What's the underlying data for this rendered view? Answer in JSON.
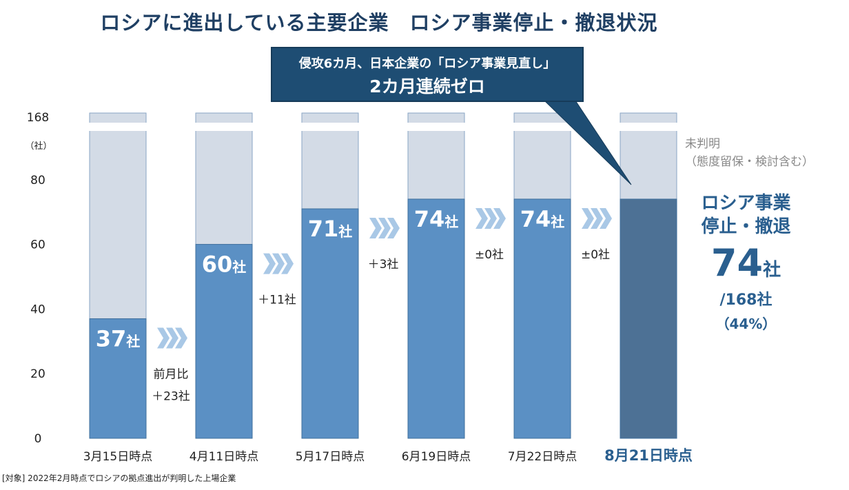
{
  "title": "ロシアに進出している主要企業　ロシア事業停止・撤退状況",
  "callout": {
    "line1": "侵攻6カ月、日本企業の「ロシア事業見直し」",
    "line2": "2カ月連続ゼロ"
  },
  "unknown_label": {
    "line1": "未判明",
    "line2": "（態度留保・検討含む）"
  },
  "summary": {
    "line1": "ロシア事業",
    "line2": "停止・撤退",
    "count": "74",
    "unit": "社",
    "total": "/168社",
    "percent": "（44%）"
  },
  "footnote": "[対象] 2022年2月時点でロシアの拠点進出が判明した上場企業",
  "colors": {
    "bar": "#5b90c4",
    "bar_last": "#4d7195",
    "unknown": "#d3dbe6",
    "arrow": "#a9c8e6",
    "title": "#1f3f63",
    "callout_bg": "#1e4d73"
  },
  "chart_data": {
    "type": "bar",
    "stacked": true,
    "unit": "（社）",
    "total_companies": 168,
    "y_ticks": [
      "0",
      "20",
      "40",
      "60",
      "80",
      "168"
    ],
    "y_axis_break": true,
    "categories": [
      "3月15日時点",
      "4月11日時点",
      "5月17日時点",
      "6月19日時点",
      "7月22日時点",
      "8月21日時点"
    ],
    "series": [
      {
        "name": "ロシア事業停止・撤退",
        "values": [
          37,
          60,
          71,
          74,
          74,
          74
        ]
      },
      {
        "name": "未判明（態度留保・検討含む）",
        "values": [
          131,
          108,
          97,
          94,
          94,
          94
        ]
      }
    ],
    "bar_labels": [
      "37",
      "60",
      "71",
      "74",
      "74",
      "74"
    ],
    "bar_label_unit": "社",
    "changes": [
      {
        "line1": "前月比",
        "line2": "＋23社"
      },
      {
        "line1": "",
        "line2": "＋11社"
      },
      {
        "line1": "",
        "line2": "＋3社"
      },
      {
        "line1": "",
        "line2": "±0社"
      },
      {
        "line1": "",
        "line2": "±0社"
      }
    ]
  }
}
